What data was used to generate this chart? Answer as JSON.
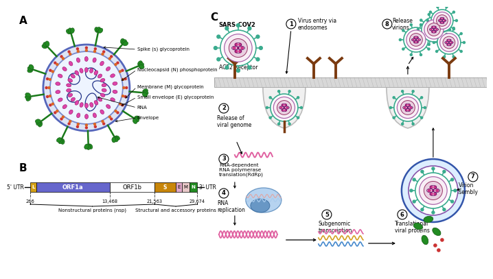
{
  "fig_width": 6.85,
  "fig_height": 3.87,
  "bg_color": "#ffffff",
  "panel_A_label": "A",
  "panel_B_label": "B",
  "panel_C_label": "C",
  "virus_labels": [
    "Spike (s) glycoprotein",
    "Nucleocapsid (N) phosphoprotein",
    "Membrane (M) glycoprotein",
    "Small envelope (E) glycoprotein",
    "RNA",
    "Envelope"
  ],
  "genome_labels": {
    "L_color": "#d4a017",
    "ORF1a_color": "#6666cc",
    "ORF1b_color": "#ffffff",
    "S_color": "#c8860a",
    "E_color": "#e0a8c8",
    "M_color": "#e8c8c8",
    "N_color": "#228B22",
    "positions": [
      "266",
      "13,468",
      "21,563",
      "29,674"
    ],
    "nsp_label": "Nonstructural proteins (nsp)",
    "struct_label": "Structural and accessory proteins",
    "utr5": "5' UTR",
    "utr3": "3' UTR"
  },
  "sars_label": "SARS-COV2",
  "ace2_label": "ACE2 Receptor",
  "teal": "#3aab8e",
  "pink": "#c97ba8",
  "darkpurple": "#8b3a6b",
  "green_spike": "#228B22",
  "brown_receptor": "#7B3B10",
  "rna_pink": "#e060a0",
  "rna_yellow": "#d4a020",
  "rna_blue": "#4488cc",
  "rna_teal": "#20a0a0",
  "membrane_fill": "#d8d8d8",
  "membrane_edge": "#aaaaaa",
  "endosome_fill": "#f0f0f0",
  "endosome_edge": "#bbbbbb",
  "blue_ring": "#3355aa",
  "light_blue_fill": "#ddeeff"
}
